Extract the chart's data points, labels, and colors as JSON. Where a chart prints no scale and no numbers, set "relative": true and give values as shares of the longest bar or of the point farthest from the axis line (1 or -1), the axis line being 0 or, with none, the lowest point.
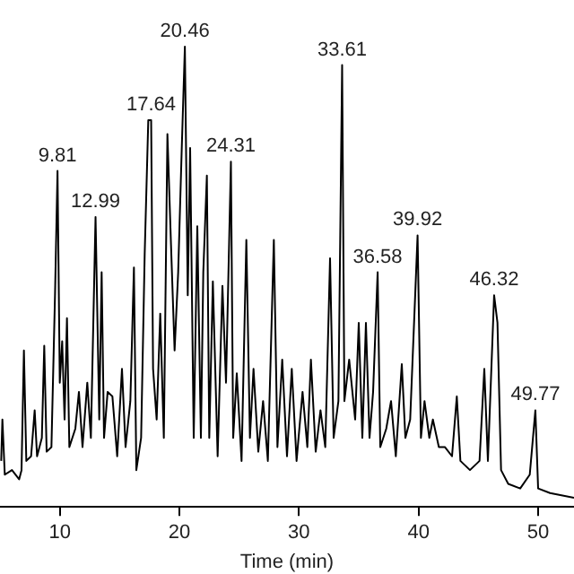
{
  "chart_data": {
    "type": "line",
    "relative": true,
    "xlabel": "Time (min)",
    "xlim": [
      5,
      53
    ],
    "xticks": [
      10,
      20,
      30,
      40,
      50
    ],
    "marker": "none",
    "series": [
      {
        "color": "#000000",
        "x": [
          5.1,
          5.2,
          5.4,
          6.0,
          6.6,
          6.8,
          7.0,
          7.2,
          7.6,
          7.9,
          8.1,
          8.5,
          8.7,
          8.9,
          9.3,
          9.6,
          9.81,
          10.0,
          10.2,
          10.4,
          10.6,
          10.8,
          11.3,
          11.6,
          11.9,
          12.3,
          12.6,
          12.99,
          13.3,
          13.5,
          13.7,
          14.0,
          14.4,
          14.8,
          15.2,
          15.5,
          15.9,
          16.2,
          16.4,
          16.8,
          17.1,
          17.4,
          17.64,
          17.8,
          18.1,
          18.4,
          18.7,
          19.0,
          19.3,
          19.6,
          19.9,
          20.2,
          20.46,
          20.7,
          20.9,
          21.2,
          21.5,
          21.8,
          22.0,
          22.3,
          22.5,
          22.8,
          23.2,
          23.6,
          23.9,
          24.31,
          24.5,
          24.8,
          25.2,
          25.6,
          25.9,
          26.2,
          26.6,
          27.0,
          27.4,
          27.9,
          28.2,
          28.6,
          29.0,
          29.4,
          29.8,
          30.3,
          30.7,
          31.0,
          31.4,
          31.8,
          32.2,
          32.6,
          32.9,
          33.3,
          33.61,
          33.8,
          34.2,
          34.7,
          35.0,
          35.3,
          35.6,
          35.9,
          36.2,
          36.58,
          36.8,
          37.3,
          37.7,
          38.1,
          38.6,
          38.9,
          39.3,
          39.92,
          40.2,
          40.5,
          40.9,
          41.2,
          41.7,
          42.2,
          42.8,
          43.2,
          43.5,
          44.3,
          45.1,
          45.5,
          45.8,
          46.32,
          46.6,
          46.9,
          47.5,
          48.5,
          49.3,
          49.77,
          50.0,
          51.0,
          53.0
        ],
        "values": [
          0.1,
          0.19,
          0.07,
          0.08,
          0.06,
          0.08,
          0.34,
          0.1,
          0.11,
          0.21,
          0.11,
          0.15,
          0.35,
          0.12,
          0.13,
          0.46,
          0.73,
          0.27,
          0.36,
          0.19,
          0.41,
          0.13,
          0.17,
          0.25,
          0.13,
          0.27,
          0.15,
          0.63,
          0.19,
          0.51,
          0.15,
          0.25,
          0.24,
          0.11,
          0.3,
          0.13,
          0.23,
          0.52,
          0.08,
          0.15,
          0.55,
          0.84,
          0.84,
          0.3,
          0.19,
          0.42,
          0.15,
          0.81,
          0.57,
          0.34,
          0.51,
          0.78,
          1.0,
          0.46,
          0.78,
          0.15,
          0.61,
          0.15,
          0.51,
          0.72,
          0.15,
          0.49,
          0.11,
          0.48,
          0.27,
          0.75,
          0.15,
          0.29,
          0.1,
          0.58,
          0.15,
          0.3,
          0.12,
          0.23,
          0.1,
          0.58,
          0.13,
          0.32,
          0.11,
          0.3,
          0.1,
          0.25,
          0.13,
          0.32,
          0.12,
          0.21,
          0.13,
          0.54,
          0.15,
          0.23,
          0.96,
          0.23,
          0.32,
          0.19,
          0.4,
          0.15,
          0.4,
          0.15,
          0.25,
          0.51,
          0.13,
          0.17,
          0.23,
          0.11,
          0.31,
          0.15,
          0.19,
          0.59,
          0.15,
          0.23,
          0.15,
          0.19,
          0.13,
          0.13,
          0.11,
          0.24,
          0.1,
          0.08,
          0.1,
          0.3,
          0.1,
          0.46,
          0.4,
          0.08,
          0.05,
          0.04,
          0.07,
          0.21,
          0.04,
          0.03,
          0.02
        ]
      }
    ],
    "annotations": [
      {
        "text": "9.81",
        "x": 9.81,
        "y": 0.73
      },
      {
        "text": "12.99",
        "x": 12.99,
        "y": 0.63
      },
      {
        "text": "17.64",
        "x": 17.64,
        "y": 0.84
      },
      {
        "text": "20.46",
        "x": 20.46,
        "y": 1.0
      },
      {
        "text": "24.31",
        "x": 24.31,
        "y": 0.75
      },
      {
        "text": "33.61",
        "x": 33.61,
        "y": 0.96
      },
      {
        "text": "36.58",
        "x": 36.58,
        "y": 0.51
      },
      {
        "text": "39.92",
        "x": 39.92,
        "y": 0.59
      },
      {
        "text": "46.32",
        "x": 46.32,
        "y": 0.46
      },
      {
        "text": "49.77",
        "x": 49.77,
        "y": 0.21
      }
    ]
  }
}
